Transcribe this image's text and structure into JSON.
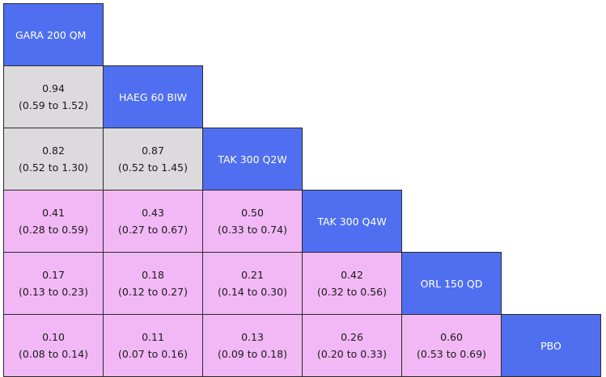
{
  "treatments": [
    "GARA 200 QM",
    "HAEG 60 BIW",
    "TAK 300 Q2W",
    "TAK 300 Q4W",
    "ORL 150 QD",
    "PBO"
  ],
  "colors": {
    "header": "#4f6ff0",
    "not_significant": "#dcdadc",
    "significant": "#f2b8f6"
  },
  "rows": [
    [],
    [
      {
        "est": "0.94",
        "ci": "(0.59 to 1.52)",
        "shade": "not_significant"
      }
    ],
    [
      {
        "est": "0.82",
        "ci": "(0.52 to 1.30)",
        "shade": "not_significant"
      },
      {
        "est": "0.87",
        "ci": "(0.52 to 1.45)",
        "shade": "not_significant"
      }
    ],
    [
      {
        "est": "0.41",
        "ci": "(0.28 to 0.59)",
        "shade": "significant"
      },
      {
        "est": "0.43",
        "ci": "(0.27 to 0.67)",
        "shade": "significant"
      },
      {
        "est": "0.50",
        "ci": "(0.33 to 0.74)",
        "shade": "significant"
      }
    ],
    [
      {
        "est": "0.17",
        "ci": "(0.13 to 0.23)",
        "shade": "significant"
      },
      {
        "est": "0.18",
        "ci": "(0.12 to 0.27)",
        "shade": "significant"
      },
      {
        "est": "0.21",
        "ci": "(0.14 to 0.30)",
        "shade": "significant"
      },
      {
        "est": "0.42",
        "ci": "(0.32 to 0.56)",
        "shade": "significant"
      }
    ],
    [
      {
        "est": "0.10",
        "ci": "(0.08 to 0.14)",
        "shade": "significant"
      },
      {
        "est": "0.11",
        "ci": "(0.07 to 0.16)",
        "shade": "significant"
      },
      {
        "est": "0.13",
        "ci": "(0.09 to 0.18)",
        "shade": "significant"
      },
      {
        "est": "0.26",
        "ci": "(0.20 to 0.33)",
        "shade": "significant"
      },
      {
        "est": "0.60",
        "ci": "(0.53 to 0.69)",
        "shade": "significant"
      }
    ]
  ]
}
